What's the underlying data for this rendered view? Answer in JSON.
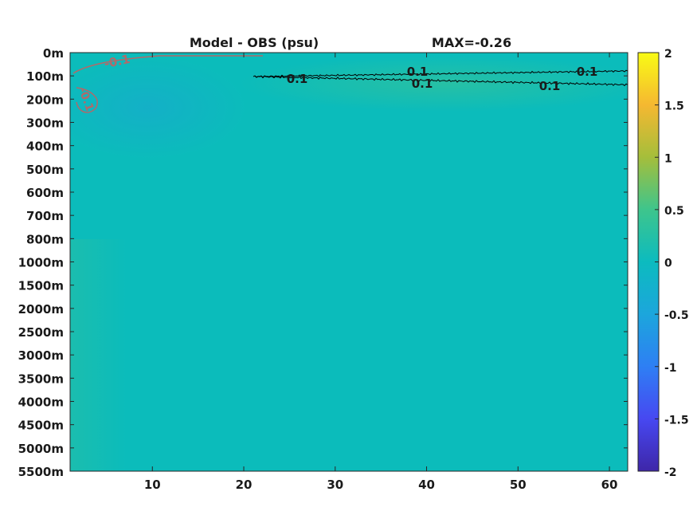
{
  "chart_data": {
    "type": "heatmap",
    "title": "Model - OBS (psu)",
    "subtitle": "MAX=-0.26",
    "xlabel": "",
    "ylabel": "",
    "xlim": [
      1,
      62
    ],
    "x_ticks": [
      10,
      20,
      30,
      40,
      50,
      60
    ],
    "y_tick_labels": [
      "0m",
      "100m",
      "200m",
      "300m",
      "400m",
      "500m",
      "600m",
      "700m",
      "800m",
      "1000m",
      "1500m",
      "2000m",
      "2500m",
      "3000m",
      "3500m",
      "4000m",
      "4500m",
      "5000m",
      "5500m"
    ],
    "colorbar": {
      "colormap": "parula",
      "range": [
        -2,
        2
      ],
      "tick_labels": [
        "2",
        "1.5",
        "1",
        "0.5",
        "0",
        "-0.5",
        "-1",
        "-1.5",
        "-2"
      ]
    },
    "field_summary": "Near-zero everywhere; slightly negative (about -0.1) near the upper-left; positive band (about 0.1) between 100m and 200m for x ≥ 21",
    "contours": [
      {
        "level": "0.1",
        "color": "#000000",
        "labels": [
          "0.1",
          "0.1",
          "0.1",
          "0.1",
          "0.1"
        ]
      },
      {
        "level": "-0.1",
        "color": "#b06a6a",
        "labels": [
          "-0.1",
          "-0.1"
        ]
      }
    ],
    "grid": false,
    "legend": "none"
  }
}
